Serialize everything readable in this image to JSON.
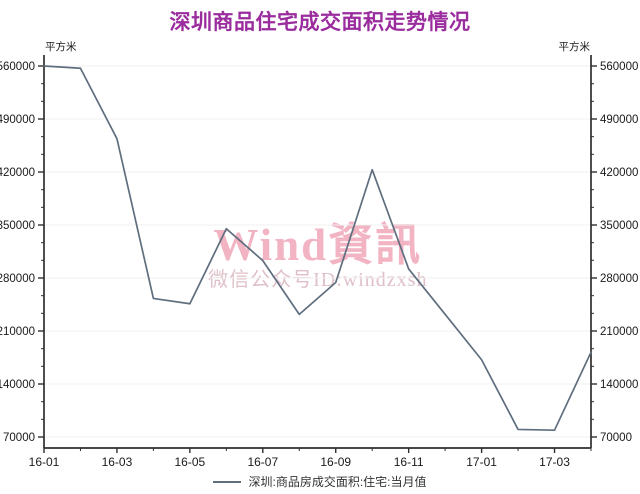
{
  "colors": {
    "title": "#9a2c9e",
    "line": "#5f6e7e",
    "axis": "#2f2f2f",
    "grid": "#f1f1f1",
    "tick_label": "#1a1a1a",
    "watermark_line1": "#f2b3c3",
    "watermark_line2": "#dfc0c8"
  },
  "watermark": {
    "line1": "Wind資訊",
    "line2": "微信公众号ID:windzxsh"
  },
  "chart_data": {
    "type": "line",
    "title": "深圳商品住宅成交面积走势情况",
    "unit": "平方米",
    "x": [
      "16-01",
      "16-02",
      "16-03",
      "16-04",
      "16-05",
      "16-06",
      "16-07",
      "16-08",
      "16-09",
      "16-10",
      "16-11",
      "16-12",
      "17-01",
      "17-02",
      "17-03",
      "17-04"
    ],
    "values": [
      560000,
      557000,
      464000,
      253000,
      246000,
      345000,
      303000,
      232000,
      274000,
      423000,
      292000,
      232000,
      172000,
      80000,
      79000,
      182000
    ],
    "x_tick_labels": [
      "16-01",
      "16-03",
      "16-05",
      "16-07",
      "16-09",
      "16-11",
      "17-01",
      "17-03"
    ],
    "yticks": [
      70000,
      140000,
      210000,
      280000,
      350000,
      420000,
      490000,
      560000
    ],
    "ylim": [
      70000,
      560000
    ],
    "y_minor_ticks_per_interval": 2,
    "grid": "horizontal major gridlines, faint",
    "axes": "left + right + bottom, dual y-axis with identical scale",
    "legend": [
      "深圳:商品房成交面积:住宅:当月值"
    ],
    "legend_position": "bottom-center"
  }
}
